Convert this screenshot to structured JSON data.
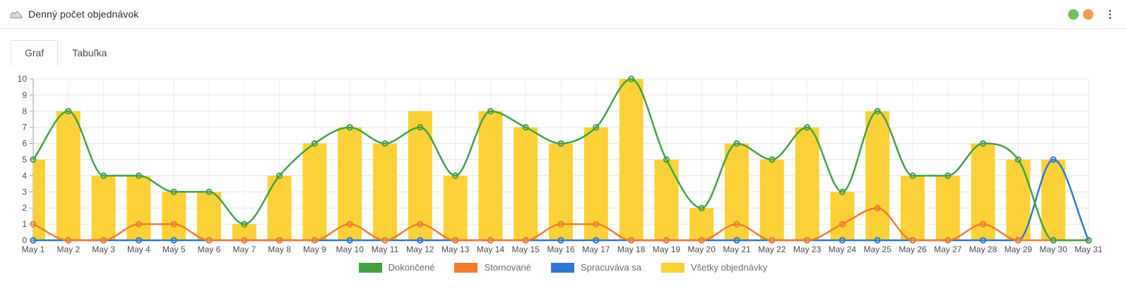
{
  "header": {
    "title": "Denný počet objednávok",
    "status_dots": [
      {
        "name": "green-status-dot",
        "color": "#72c25e"
      },
      {
        "name": "orange-status-dot",
        "color": "#f0a04c"
      }
    ]
  },
  "tabs": [
    {
      "label": "Graf",
      "active": true
    },
    {
      "label": "Tabuľka",
      "active": false
    }
  ],
  "chart_data": {
    "type": "bar",
    "subtype": "combo-bar-line",
    "categories": [
      "May 1",
      "May 2",
      "May 3",
      "May 4",
      "May 5",
      "May 6",
      "May 7",
      "May 8",
      "May 9",
      "May 10",
      "May 11",
      "May 12",
      "May 13",
      "May 14",
      "May 15",
      "May 16",
      "May 17",
      "May 18",
      "May 19",
      "May 20",
      "May 21",
      "May 22",
      "May 23",
      "May 24",
      "May 25",
      "May 26",
      "May 27",
      "May 28",
      "May 29",
      "May 30",
      "May 31"
    ],
    "series": [
      {
        "name": "Dokončené",
        "type": "line",
        "color": "#43a047",
        "values": [
          5,
          8,
          4,
          4,
          3,
          3,
          1,
          4,
          6,
          7,
          6,
          7,
          4,
          8,
          7,
          6,
          7,
          10,
          5,
          2,
          6,
          5,
          7,
          3,
          8,
          4,
          4,
          6,
          5,
          0,
          0
        ]
      },
      {
        "name": "Stornované",
        "type": "line",
        "color": "#ef7d2e",
        "values": [
          1,
          0,
          0,
          1,
          1,
          0,
          0,
          0,
          0,
          1,
          0,
          1,
          0,
          0,
          0,
          1,
          1,
          0,
          0,
          0,
          1,
          0,
          0,
          1,
          2,
          0,
          0,
          1,
          0,
          0,
          0
        ]
      },
      {
        "name": "Spracuváva sa",
        "type": "line",
        "color": "#2f77d0",
        "values": [
          0,
          0,
          0,
          0,
          0,
          0,
          0,
          0,
          0,
          0,
          0,
          0,
          0,
          0,
          0,
          0,
          0,
          0,
          0,
          0,
          0,
          0,
          0,
          0,
          0,
          0,
          0,
          0,
          0,
          5,
          0
        ]
      },
      {
        "name": "Všetky objednávky",
        "type": "bar",
        "color": "#fcd137",
        "values": [
          5,
          8,
          4,
          4,
          3,
          3,
          1,
          4,
          6,
          7,
          6,
          8,
          4,
          8,
          7,
          6,
          7,
          10,
          5,
          2,
          6,
          5,
          7,
          3,
          8,
          4,
          4,
          6,
          5,
          5,
          0
        ]
      }
    ],
    "title": "",
    "xlabel": "",
    "ylabel": "",
    "ylim": [
      0,
      10
    ],
    "yticks": [
      0,
      1,
      2,
      3,
      4,
      5,
      6,
      7,
      8,
      9,
      10
    ],
    "grid": true,
    "legend_position": "bottom"
  }
}
